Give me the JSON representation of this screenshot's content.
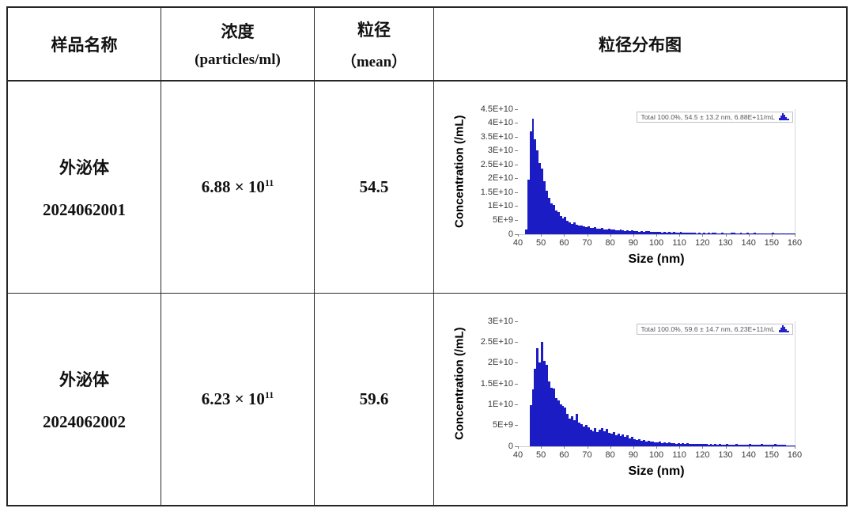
{
  "table": {
    "headers": {
      "sample_name": "样品名称",
      "concentration_line1": "浓度",
      "concentration_line2": "(particles/ml)",
      "size_line1": "粒径",
      "size_line2": "（mean）",
      "distribution": "粒径分布图"
    },
    "rows": [
      {
        "sample_line1": "外泌体",
        "sample_line2": "2024062001",
        "concentration_base": "6.88 × 10",
        "concentration_exp": "11",
        "size_mean": "54.5"
      },
      {
        "sample_line1": "外泌体",
        "sample_line2": "2024062002",
        "concentration_base": "6.23 × 10",
        "concentration_exp": "11",
        "size_mean": "59.6"
      }
    ]
  },
  "colors": {
    "bar_blue": "#1c1cc4",
    "legend_icon_blue": "#2222cc",
    "table_border": "#262626"
  },
  "chart_data": [
    {
      "type": "bar",
      "title": "",
      "xlabel": "Size (nm)",
      "ylabel": "Concentration (/mL)",
      "xlim": [
        40,
        160
      ],
      "ylim": [
        0,
        45000000000
      ],
      "grid": false,
      "legend_position": "top-right",
      "legend": "Total  100.0%,  54.5 ± 13.2 nm,  6.88E+11/mL",
      "x_ticks": [
        "40",
        "50",
        "60",
        "70",
        "80",
        "90",
        "100",
        "110",
        "120",
        "130",
        "140",
        "150",
        "160"
      ],
      "y_ticks": [
        "4.5E+10",
        "4E+10",
        "3.5E+10",
        "3E+10",
        "2.5E+10",
        "2E+10",
        "1.5E+10",
        "1E+10",
        "5E+9",
        "0"
      ],
      "bin_start_nm": 40,
      "bin_width_nm": 1,
      "values_e9": [
        0,
        0,
        0,
        1.5,
        19.5,
        37,
        41.5,
        34,
        30,
        25.5,
        23.5,
        19,
        15.5,
        13,
        11,
        10.5,
        8.5,
        7.8,
        6.4,
        5.6,
        6.0,
        4.6,
        4.2,
        3.6,
        4.0,
        3.3,
        2.9,
        3.1,
        2.6,
        2.5,
        2.8,
        2.2,
        2.0,
        2.3,
        1.9,
        1.8,
        2.1,
        1.7,
        1.6,
        1.9,
        1.5,
        1.7,
        1.4,
        1.2,
        1.6,
        1.2,
        1.1,
        1.3,
        1.0,
        1.2,
        0.9,
        1.1,
        0.8,
        1.0,
        0.7,
        0.9,
        1.0,
        0.7,
        0.6,
        0.8,
        0.6,
        0.8,
        0.5,
        0.7,
        0.5,
        0.6,
        0.4,
        0.6,
        0.4,
        0.5,
        0.7,
        0.4,
        0.3,
        0.5,
        0.3,
        0.4,
        0.5,
        0.2,
        0.4,
        0.2,
        0.3,
        0.2,
        0.4,
        0.2,
        0.3,
        0.4,
        0.2,
        0.1,
        0.3,
        0.1,
        0.2,
        0.1,
        0.3,
        0.4,
        0.1,
        0.2,
        0.3,
        0.1,
        0.2,
        0.3,
        0.1,
        0.2,
        0.3,
        0.1,
        0.2,
        0.1,
        0.2,
        0.1,
        0.2,
        0.1,
        0.3,
        0.1,
        0.2,
        0.1,
        0.1,
        0.2,
        0.1,
        0.1,
        0.1,
        0.1
      ]
    },
    {
      "type": "bar",
      "title": "",
      "xlabel": "Size (nm)",
      "ylabel": "Concentration (/mL)",
      "xlim": [
        40,
        160
      ],
      "ylim": [
        0,
        30000000000
      ],
      "grid": false,
      "legend_position": "top-right",
      "legend": "Total  100.0%,  59.6 ± 14.7 nm,  6.23E+11/mL",
      "x_ticks": [
        "40",
        "50",
        "60",
        "70",
        "80",
        "90",
        "100",
        "110",
        "120",
        "130",
        "140",
        "150",
        "160"
      ],
      "y_ticks": [
        "3E+10",
        "2.5E+10",
        "2E+10",
        "1.5E+10",
        "1E+10",
        "5E+9",
        "0"
      ],
      "bin_start_nm": 40,
      "bin_width_nm": 1,
      "values_e9": [
        0,
        0,
        0,
        0,
        0,
        9.8,
        13.5,
        18.5,
        23.5,
        20,
        25,
        20.5,
        19.5,
        15.5,
        14,
        13.8,
        11.5,
        11,
        10,
        9.6,
        9.2,
        7.6,
        6.6,
        7.2,
        6.2,
        7.6,
        5.6,
        5.2,
        4.6,
        5.0,
        4.4,
        3.9,
        3.6,
        4.2,
        3.3,
        3.9,
        4.3,
        3.6,
        4.1,
        3.1,
        2.9,
        3.3,
        2.6,
        2.9,
        2.3,
        2.7,
        2.1,
        2.5,
        1.9,
        2.1,
        1.7,
        1.5,
        1.6,
        1.3,
        1.4,
        1.1,
        1.2,
        1.0,
        1.1,
        0.9,
        0.8,
        1.0,
        0.7,
        0.9,
        0.6,
        0.8,
        0.6,
        0.7,
        0.5,
        0.6,
        0.5,
        0.6,
        0.4,
        0.6,
        0.4,
        0.5,
        0.4,
        0.5,
        0.4,
        0.4,
        0.5,
        0.4,
        0.3,
        0.4,
        0.3,
        0.4,
        0.3,
        0.4,
        0.3,
        0.3,
        0.4,
        0.3,
        0.3,
        0.3,
        0.4,
        0.3,
        0.2,
        0.3,
        0.3,
        0.2,
        0.4,
        0.3,
        0.2,
        0.3,
        0.2,
        0.4,
        0.3,
        0.2,
        0.3,
        0.2,
        0.3,
        0.4,
        0.3,
        0.2,
        0.2,
        0.2,
        0.1,
        0.1,
        0.1,
        0.1
      ]
    }
  ]
}
